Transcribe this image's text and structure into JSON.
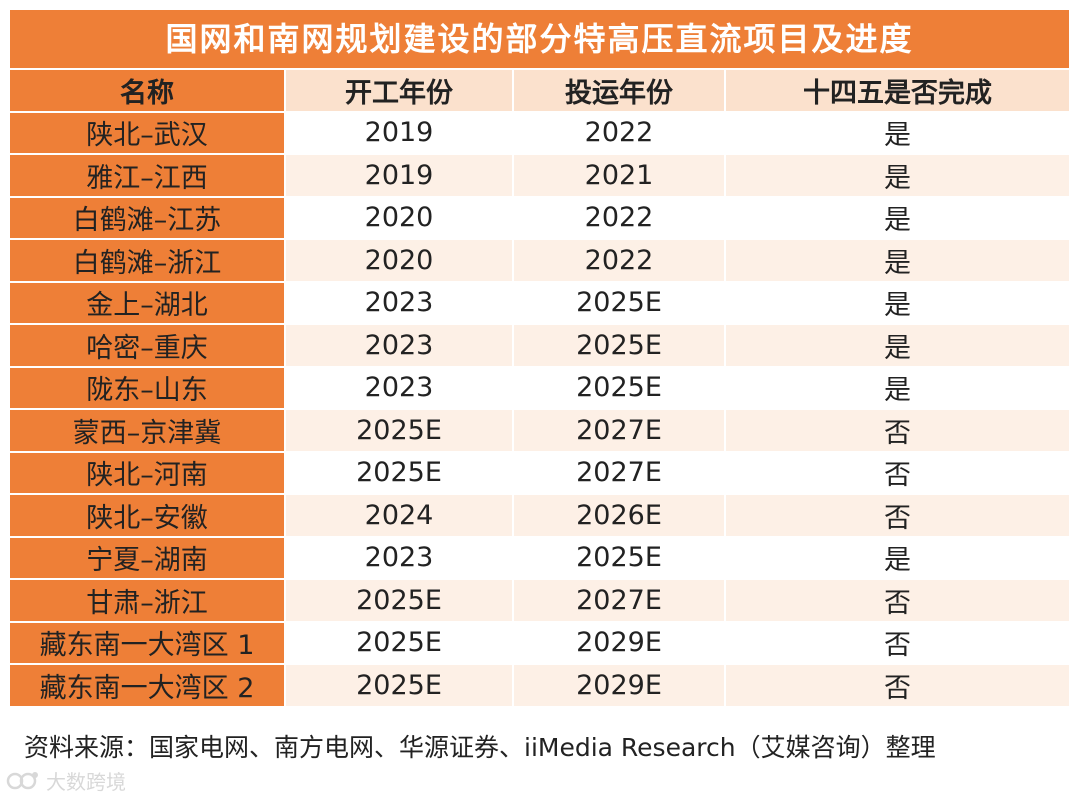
{
  "title": "国网和南网规划建设的部分特高压直流项目及进度",
  "headers": [
    "名称",
    "开工年份",
    "投运年份",
    "十四五是否完成"
  ],
  "rows": [
    {
      "name": "陕北–武汉",
      "start": "2019",
      "operate": "2022",
      "done": "是"
    },
    {
      "name": "雅江–江西",
      "start": "2019",
      "operate": "2021",
      "done": "是"
    },
    {
      "name": "白鹤滩–江苏",
      "start": "2020",
      "operate": "2022",
      "done": "是"
    },
    {
      "name": "白鹤滩–浙江",
      "start": "2020",
      "operate": "2022",
      "done": "是"
    },
    {
      "name": "金上–湖北",
      "start": "2023",
      "operate": "2025E",
      "done": "是"
    },
    {
      "name": "哈密–重庆",
      "start": "2023",
      "operate": "2025E",
      "done": "是"
    },
    {
      "name": "陇东–山东",
      "start": "2023",
      "operate": "2025E",
      "done": "是"
    },
    {
      "name": "蒙西–京津冀",
      "start": "2025E",
      "operate": "2027E",
      "done": "否"
    },
    {
      "name": "陕北–河南",
      "start": "2025E",
      "operate": "2027E",
      "done": "否"
    },
    {
      "name": "陕北–安徽",
      "start": "2024",
      "operate": "2026E",
      "done": "否"
    },
    {
      "name": "宁夏–湖南",
      "start": "2023",
      "operate": "2025E",
      "done": "是"
    },
    {
      "name": "甘肃–浙江",
      "start": "2025E",
      "operate": "2027E",
      "done": "否"
    },
    {
      "name": "藏东南一大湾区 1",
      "start": "2025E",
      "operate": "2029E",
      "done": "否"
    },
    {
      "name": "藏东南一大湾区 2",
      "start": "2025E",
      "operate": "2029E",
      "done": "否"
    }
  ],
  "source": "资料来源：国家电网、南方电网、华源证券、iiMedia Research（艾媒咨询）整理",
  "watermark": "大数跨境",
  "colors": {
    "accent": "#ee7f37",
    "header_light": "#fbe1cd",
    "stripe": "#fdf0e6"
  }
}
